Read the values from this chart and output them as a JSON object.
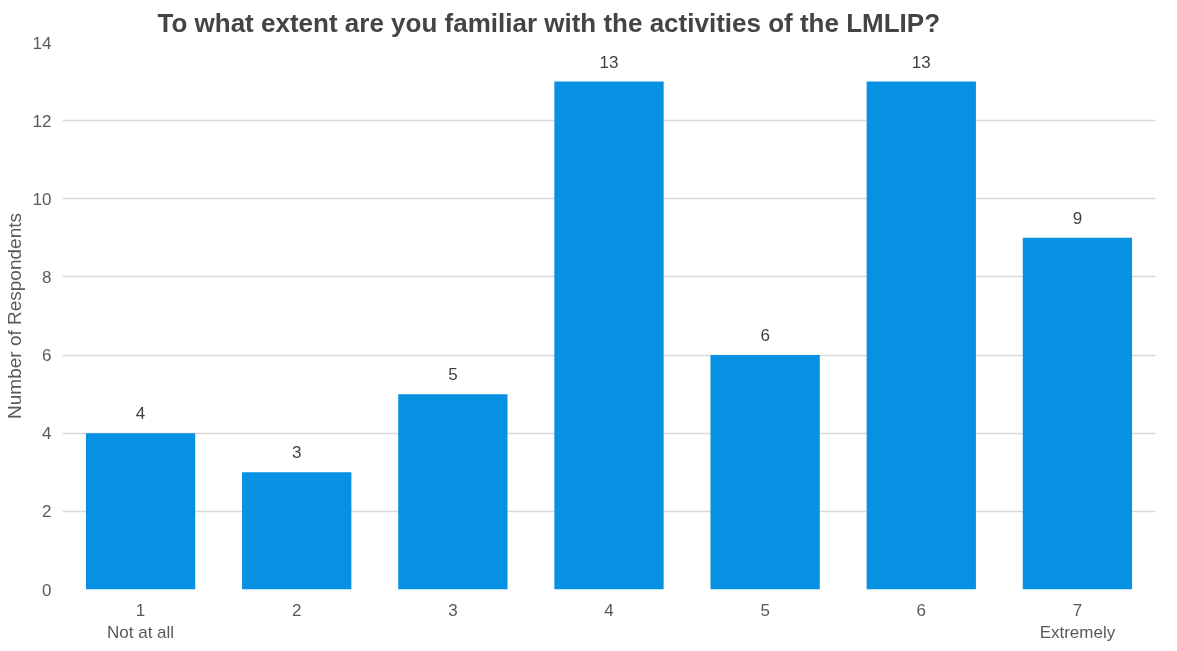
{
  "chart_data": {
    "type": "bar",
    "title": "To what extent are you familiar with the activities of the LMLIP?",
    "ylabel": "Number of Respondents",
    "categories": [
      "1\nNot at all",
      "2",
      "3",
      "4",
      "5",
      "6",
      "7\nExtremely"
    ],
    "values": [
      4,
      3,
      5,
      13,
      6,
      13,
      9
    ],
    "color": "#0791e3",
    "ylim": [
      0,
      14
    ],
    "yticks": [
      0,
      2,
      4,
      6,
      8,
      10,
      12,
      14
    ],
    "grid": "y",
    "data_labels": true
  }
}
